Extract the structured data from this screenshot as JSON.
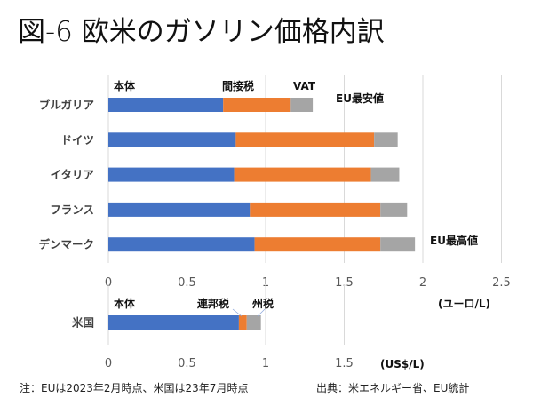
{
  "title": "図-6 欧米のガソリン価格内訳",
  "colors": {
    "base": "#4472C4",
    "tax1": "#ED7D31",
    "tax2": "#A5A5A5",
    "grid": "#D9D9D9"
  },
  "chart_data": [
    {
      "type": "bar",
      "orientation": "horizontal",
      "stacked": true,
      "categories": [
        "ブルガリア",
        "ドイツ",
        "イタリア",
        "フランス",
        "デンマーク"
      ],
      "series": [
        {
          "name": "本体",
          "values": [
            0.73,
            0.81,
            0.8,
            0.9,
            0.93
          ]
        },
        {
          "name": "間接税",
          "values": [
            0.43,
            0.88,
            0.87,
            0.83,
            0.8
          ]
        },
        {
          "name": "VAT",
          "values": [
            0.14,
            0.15,
            0.18,
            0.17,
            0.22
          ]
        }
      ],
      "xlim": [
        0,
        2.5
      ],
      "xticks": [
        "0",
        "0.5",
        "1",
        "1.5",
        "2",
        "2.5"
      ],
      "xlabel": "(ユーロ/L)",
      "grid": true,
      "annotations": {
        "min": "EU最安値",
        "max": "EU最高値"
      }
    },
    {
      "type": "bar",
      "orientation": "horizontal",
      "stacked": true,
      "categories": [
        "米国"
      ],
      "series": [
        {
          "name": "本体",
          "values": [
            0.83
          ]
        },
        {
          "name": "連邦税",
          "values": [
            0.05
          ]
        },
        {
          "name": "州税",
          "values": [
            0.09
          ]
        }
      ],
      "xlim": [
        0,
        1.5
      ],
      "xticks": [
        "0",
        "0.5",
        "1",
        "1.5"
      ],
      "xlabel": "(US$/L)",
      "grid": true
    }
  ],
  "footer": {
    "note": "注：EUは2023年2月時点、米国は23年7月時点",
    "source": "出典：米エネルギー省、EU統計"
  }
}
